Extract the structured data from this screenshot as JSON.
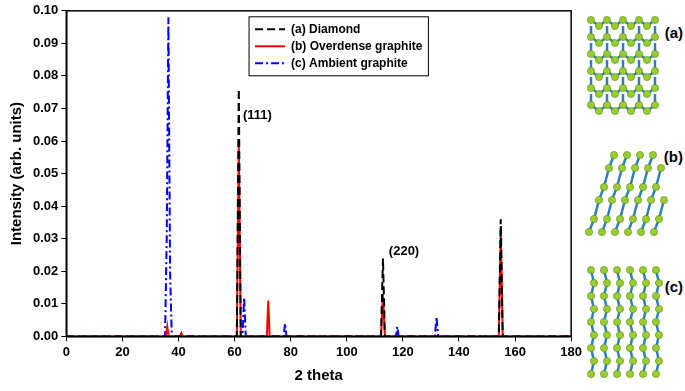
{
  "chart_data": {
    "type": "line",
    "x_label": "2 theta",
    "y_label": "Intensity (arb. units)",
    "xlim": [
      0,
      180
    ],
    "xticks": [
      0,
      20,
      40,
      60,
      80,
      100,
      120,
      140,
      160,
      180
    ],
    "ylim": [
      0,
      0.1
    ],
    "yticks": [
      {
        "value": 0,
        "label": "0.00"
      },
      {
        "value": 0.01,
        "label": "0.01"
      },
      {
        "value": 0.02,
        "label": "0.02"
      },
      {
        "value": 0.03,
        "label": "0.03"
      },
      {
        "value": 0.04,
        "label": "0.04"
      },
      {
        "value": 0.05,
        "label": "0.05"
      },
      {
        "value": 0.06,
        "label": "0.06"
      },
      {
        "value": 0.07,
        "label": "0.07"
      },
      {
        "value": 0.08,
        "label": "0.08"
      },
      {
        "value": 0.09,
        "label": "0.09"
      },
      {
        "value": 0.1,
        "label": "0.10"
      }
    ],
    "grid": false,
    "legend": "upper center",
    "series": [
      {
        "name": "(a) Diamond",
        "color": "#000000",
        "line_style": "dashed",
        "x": [
          0,
          60.8,
          61.5,
          62.2,
          112.2,
          112.9,
          113.6,
          154.2,
          154.9,
          155.6,
          180
        ],
        "values": [
          0,
          0,
          0.076,
          0,
          0,
          0.024,
          0,
          0,
          0.036,
          0,
          0
        ]
      },
      {
        "name": "(b) Overdense graphite",
        "color": "#ff0000",
        "line_style": "solid",
        "x": [
          0,
          35.5,
          36,
          36.5,
          40.5,
          41,
          41.5,
          60.8,
          61.5,
          62.2,
          71.5,
          72,
          72.5,
          112.2,
          112.9,
          113.6,
          154.2,
          154.9,
          155.6,
          180
        ],
        "values": [
          0,
          0,
          0.003,
          0,
          0,
          0.001,
          0,
          0,
          0.06,
          0,
          0,
          0.011,
          0,
          0,
          0.013,
          0,
          0,
          0.033,
          0,
          0
        ]
      },
      {
        "name": "(c) Ambient graphite",
        "color": "#0000ff",
        "line_style": "dashdot",
        "x": [
          0,
          35.2,
          35.8,
          36.4,
          37,
          37.6,
          62.8,
          63.4,
          64,
          77.5,
          78,
          78.5,
          117.5,
          118,
          118.5,
          131.4,
          132,
          132.6,
          180
        ],
        "values": [
          0,
          0,
          0.03,
          0.098,
          0.02,
          0,
          0,
          0.012,
          0,
          0,
          0.004,
          0,
          0,
          0.003,
          0,
          0,
          0.006,
          0,
          0
        ]
      }
    ],
    "annotations": [
      {
        "text": "(111)",
        "x": 63,
        "y": 0.068
      },
      {
        "text": "(220)",
        "x": 115,
        "y": 0.026
      }
    ],
    "structures": [
      {
        "label": "(a)",
        "name": "Diamond"
      },
      {
        "label": "(b)",
        "name": "Overdense graphite"
      },
      {
        "label": "(c)",
        "name": "Ambient graphite"
      }
    ]
  }
}
